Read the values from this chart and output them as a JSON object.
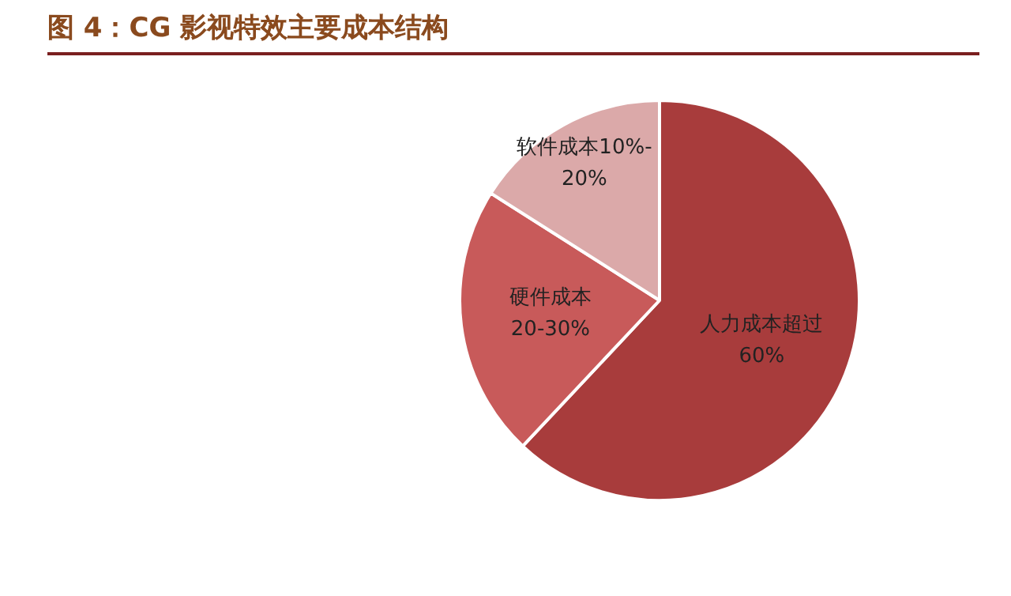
{
  "chart_data": {
    "type": "pie",
    "title": "图 4：CG 影视特效主要成本结构",
    "categories": [
      "人力成本超过\n60%",
      "硬件成本\n20-30%",
      "软件成本10%-\n20%"
    ],
    "values": [
      62,
      22,
      16
    ],
    "colors": [
      "#a83c3c",
      "#c85a5a",
      "#dba9a9"
    ],
    "legend": false
  }
}
